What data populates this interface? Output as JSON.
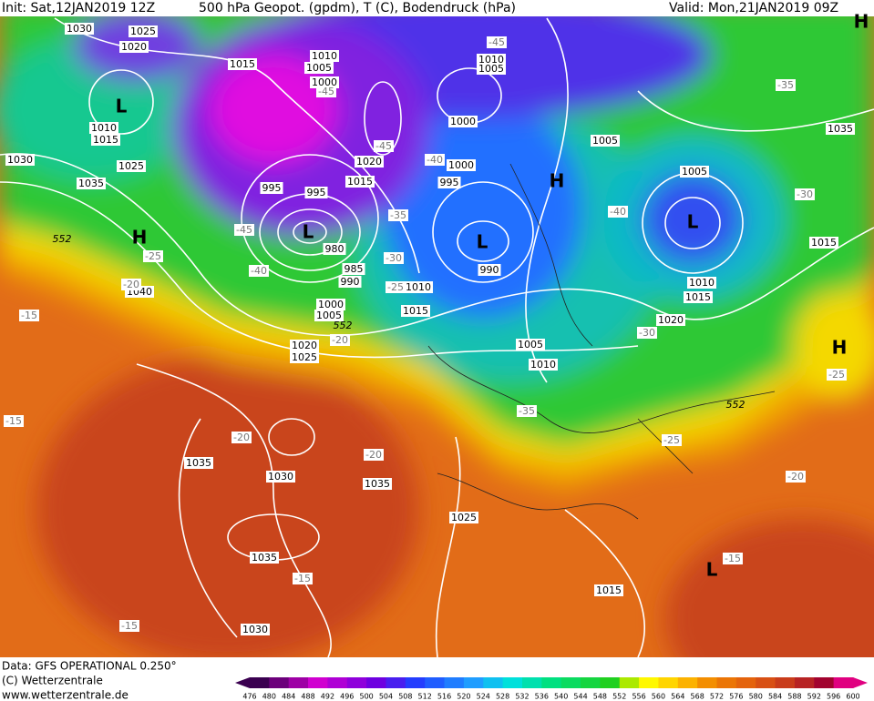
{
  "header": {
    "init": "Init: Sat,12JAN2019 12Z",
    "title": "500 hPa Geopot. (gpdm), T (C), Bodendruck (hPa)",
    "valid": "Valid: Mon,21JAN2019 09Z"
  },
  "map": {
    "pressure_labels": [
      1030,
      1025,
      1020,
      1015,
      1010,
      1005,
      1000,
      1010,
      1005,
      1000,
      1010,
      1015,
      1030,
      1025,
      1035,
      1020,
      1015,
      995,
      995,
      1000,
      995,
      1005,
      1005,
      1035,
      1015,
      980,
      985,
      990,
      990,
      1010,
      1040,
      1000,
      1005,
      1015,
      1010,
      1015,
      1020,
      1020,
      1025,
      1005,
      1010,
      1035,
      1030,
      1035,
      1025,
      1035,
      1015,
      1030
    ],
    "temperature_labels": [
      -45,
      -45,
      -35,
      -45,
      -40,
      -35,
      -40,
      -30,
      -45,
      -25,
      -40,
      -30,
      -25,
      -20,
      -15,
      -20,
      -30,
      -25,
      -35,
      -25,
      -15,
      -20,
      -20,
      -20,
      -15,
      -15,
      -15
    ],
    "highs_lows": [
      "L",
      "H",
      "L",
      "L",
      "H",
      "L",
      "H",
      "H",
      "L"
    ],
    "height_552": [
      552,
      552,
      552
    ]
  },
  "colorbar": {
    "labels": [
      476,
      480,
      484,
      488,
      492,
      496,
      500,
      504,
      508,
      512,
      516,
      520,
      524,
      528,
      532,
      536,
      540,
      544,
      548,
      552,
      556,
      560,
      564,
      568,
      572,
      576,
      580,
      584,
      588,
      592,
      596,
      600
    ]
  },
  "footer": {
    "data": "Data: GFS OPERATIONAL 0.250°",
    "copyright": "(C) Wetterzentrale",
    "url": "www.wetterzentrale.de"
  }
}
